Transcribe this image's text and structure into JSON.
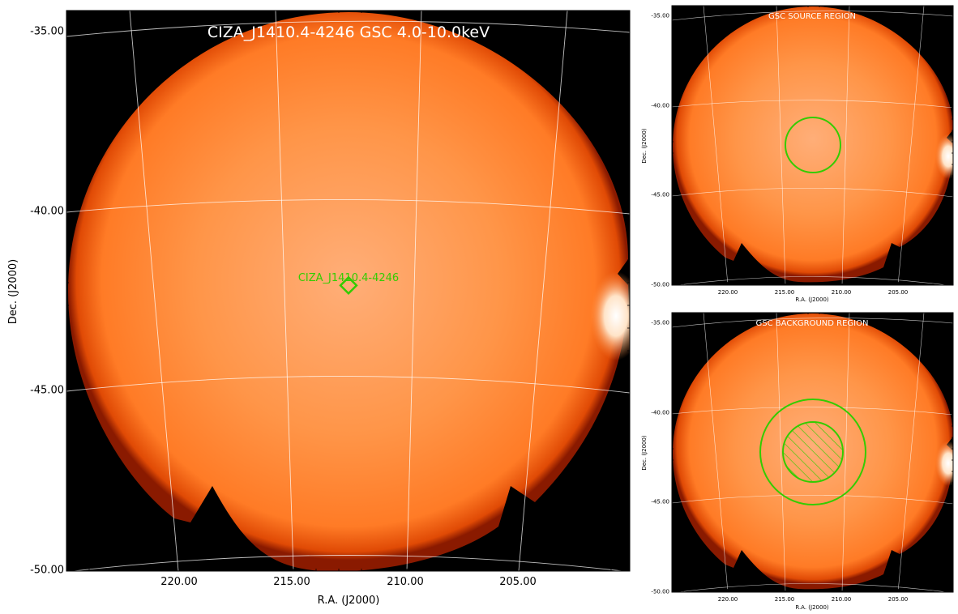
{
  "colors": {
    "background": "#000000",
    "disk_center": "#ffb07a",
    "disk_mid": "#ff8a3a",
    "disk_edge": "#ff6a10",
    "rim": "#b82800",
    "grid": "#ffffff",
    "region": "#33cc00",
    "title_text": "#ffffff"
  },
  "main": {
    "title": "CIZA_J1410.4-4246 GSC 4.0-10.0keV",
    "xlabel": "R.A. (J2000)",
    "ylabel": "Dec. (J2000)",
    "dec_ticks": [
      "-35.00",
      "-40.00",
      "-45.00",
      "-50.00"
    ],
    "ra_ticks": [
      "220.00",
      "215.00",
      "210.00",
      "205.00"
    ],
    "source_label": "CIZA_J1410.4-4246",
    "source_marker": "diamond"
  },
  "source_panel": {
    "title": "GSC SOURCE REGION",
    "xlabel": "R.A. (J2000)",
    "ylabel": "Dec. (J2000)",
    "dec_ticks": [
      "-35.00",
      "-40.00",
      "-45.00",
      "-50.00"
    ],
    "ra_ticks": [
      "220.00",
      "215.00",
      "210.00",
      "205.00"
    ],
    "region": "circle"
  },
  "background_panel": {
    "title": "GSC BACKGROUND REGION",
    "xlabel": "R.A. (J2000)",
    "ylabel": "Dec. (J2000)",
    "dec_ticks": [
      "-35.00",
      "-40.00",
      "-45.00",
      "-50.00"
    ],
    "ra_ticks": [
      "220.00",
      "215.00",
      "210.00",
      "205.00"
    ],
    "region": "annulus with hatched excluded inner circle"
  }
}
